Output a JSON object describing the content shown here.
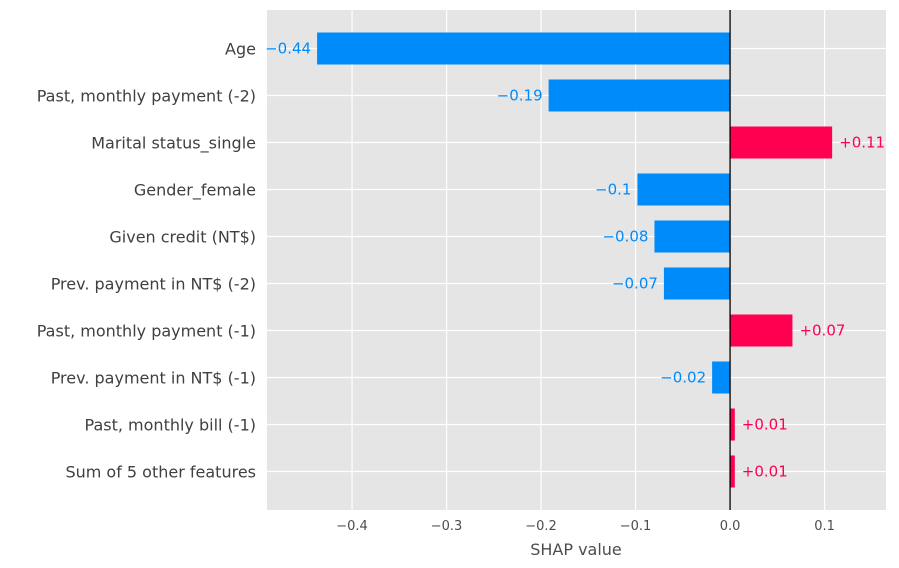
{
  "chart_data": {
    "type": "bar",
    "orientation": "horizontal",
    "title": "",
    "xlabel": "SHAP value",
    "ylabel": "",
    "xlim": [
      -0.49,
      0.165
    ],
    "grid": true,
    "xticks": [
      -0.4,
      -0.3,
      -0.2,
      -0.1,
      0.0,
      0.1
    ],
    "xtick_labels": [
      "−0.4",
      "−0.3",
      "−0.2",
      "−0.1",
      "0.0",
      "0.1"
    ],
    "categories": [
      "Age",
      "Past, monthly payment (-2)",
      "Marital status_single",
      "Gender_female",
      "Given credit (NT$)",
      "Prev. payment in NT$ (-2)",
      "Past, monthly payment (-1)",
      "Prev. payment in NT$ (-1)",
      "Past, monthly bill (-1)",
      "Sum of 5 other features"
    ],
    "values": [
      -0.437,
      -0.192,
      0.108,
      -0.098,
      -0.08,
      -0.07,
      0.066,
      -0.019,
      0.005,
      0.005
    ],
    "value_labels": [
      "−0.44",
      "−0.19",
      "+0.11",
      "−0.1",
      "−0.08",
      "−0.07",
      "+0.07",
      "−0.02",
      "+0.01",
      "+0.01"
    ],
    "colors": {
      "negative": "#008bfb",
      "positive": "#ff0051",
      "background": "#e5e5e5",
      "grid": "#ffffff",
      "zero_line": "#000000"
    }
  }
}
